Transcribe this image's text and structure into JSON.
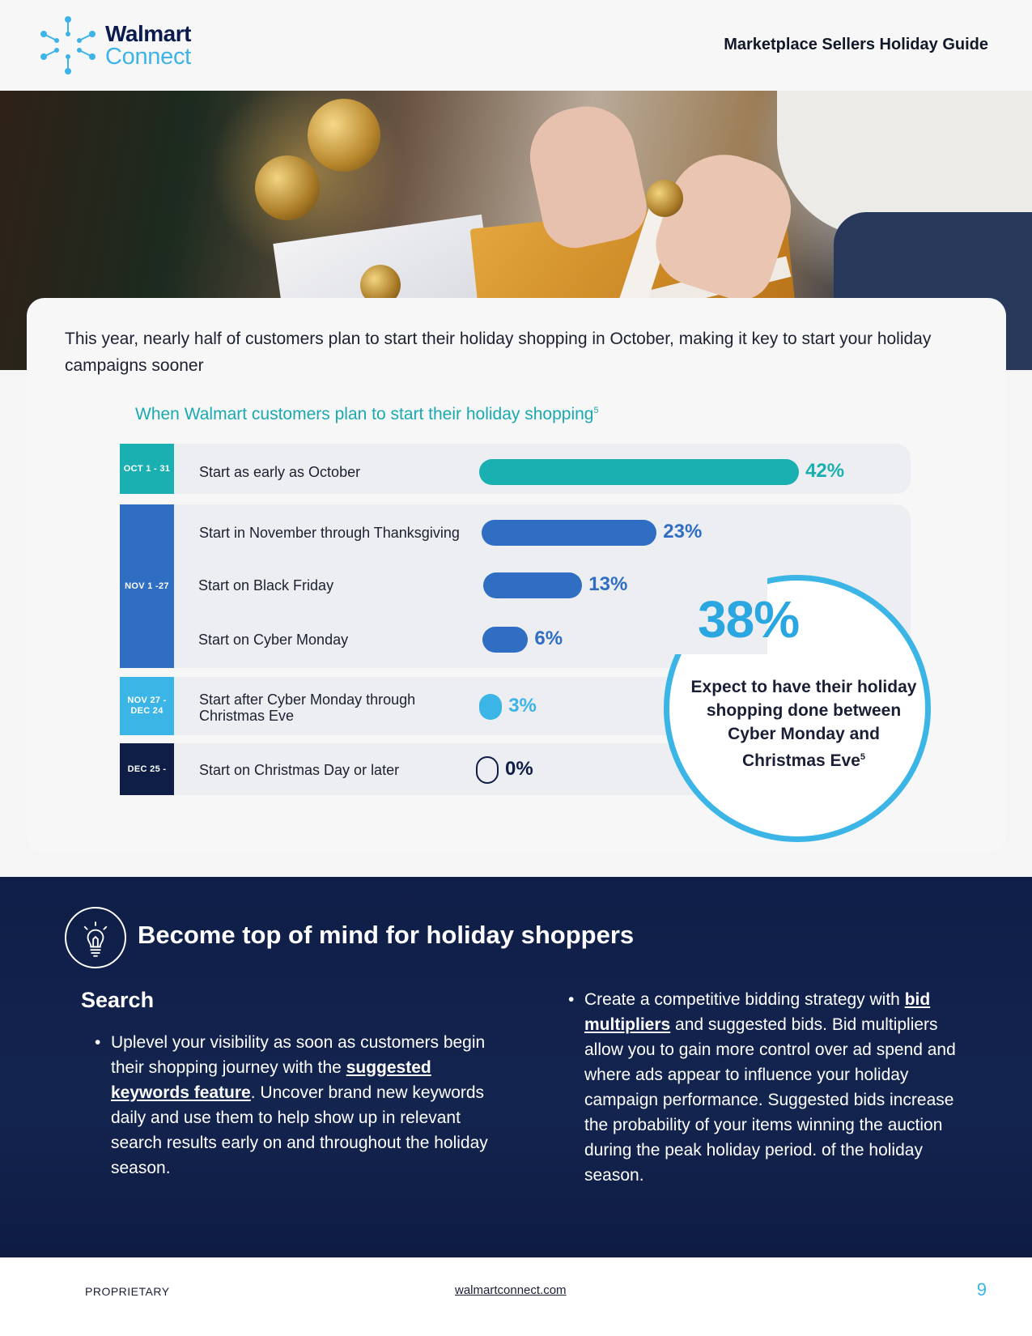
{
  "header": {
    "logo_line1": "Walmart",
    "logo_line2": "Connect",
    "guide_title": "Marketplace Sellers Holiday Guide"
  },
  "intro": "This year, nearly half of customers plan to start their holiday shopping in October, making it key to start your holiday campaigns sooner",
  "chart": {
    "title": "When Walmart customers plan to start their holiday shopping",
    "title_sup": "5",
    "groups": [
      {
        "tag": "OCT 1 - 31",
        "color": "#1aafb0"
      },
      {
        "tag": "NOV 1 -27",
        "color": "#2f6ec2"
      },
      {
        "tag": "NOV 27 - DEC 24",
        "tag_line1": "NOV 27 -",
        "tag_line2": "DEC 24",
        "color": "#3bb4e6"
      },
      {
        "tag": "DEC 25 -",
        "color": "#0f1e47"
      }
    ]
  },
  "chart_data": {
    "type": "bar",
    "title": "When Walmart customers plan to start their holiday shopping",
    "orientation": "horizontal",
    "unit": "%",
    "categories": [
      "Start as early as October",
      "Start in November through Thanksgiving",
      "Start on Black Friday",
      "Start on Cyber Monday",
      "Start after Cyber Monday through Christmas Eve",
      "Start on Christmas Day or later"
    ],
    "values": [
      42,
      23,
      13,
      6,
      3,
      0
    ],
    "value_labels": [
      "42%",
      "23%",
      "13%",
      "6%",
      "3%",
      "0%"
    ],
    "bar_colors": [
      "#1aafb0",
      "#2f6ec2",
      "#2f6ec2",
      "#2f6ec2",
      "#3bb4e6",
      "#0f1e47"
    ],
    "xlim": [
      0,
      42
    ]
  },
  "callout": {
    "value": "38%",
    "text": "Expect to have their holiday shopping done between Cyber Monday and Christmas Eve",
    "sup": "5"
  },
  "section": {
    "title": "Become top of mind for holiday shoppers",
    "subtitle": "Search",
    "bullet1": {
      "before": "Uplevel your visibility as soon as customers begin their shopping journey with the ",
      "link": "suggested keywords feature",
      "after": ". Uncover brand new keywords daily and use them to help show up in relevant search results early on and throughout the holiday season."
    },
    "bullet2": {
      "before": "Create a competitive bidding strategy with ",
      "link": "bid multipliers",
      "after": " and suggested bids. Bid multipliers allow you to gain more control over ad spend and where ads appear to influence your holiday campaign performance. Suggested bids increase the probability of your items winning the auction during the peak holiday period. of the holiday season."
    }
  },
  "footer": {
    "left": "PROPRIETARY",
    "center": "walmartconnect.com",
    "page": "9"
  },
  "icons": {
    "logo": "walmart-connect-spark-icon",
    "section": "lightbulb-icon"
  }
}
